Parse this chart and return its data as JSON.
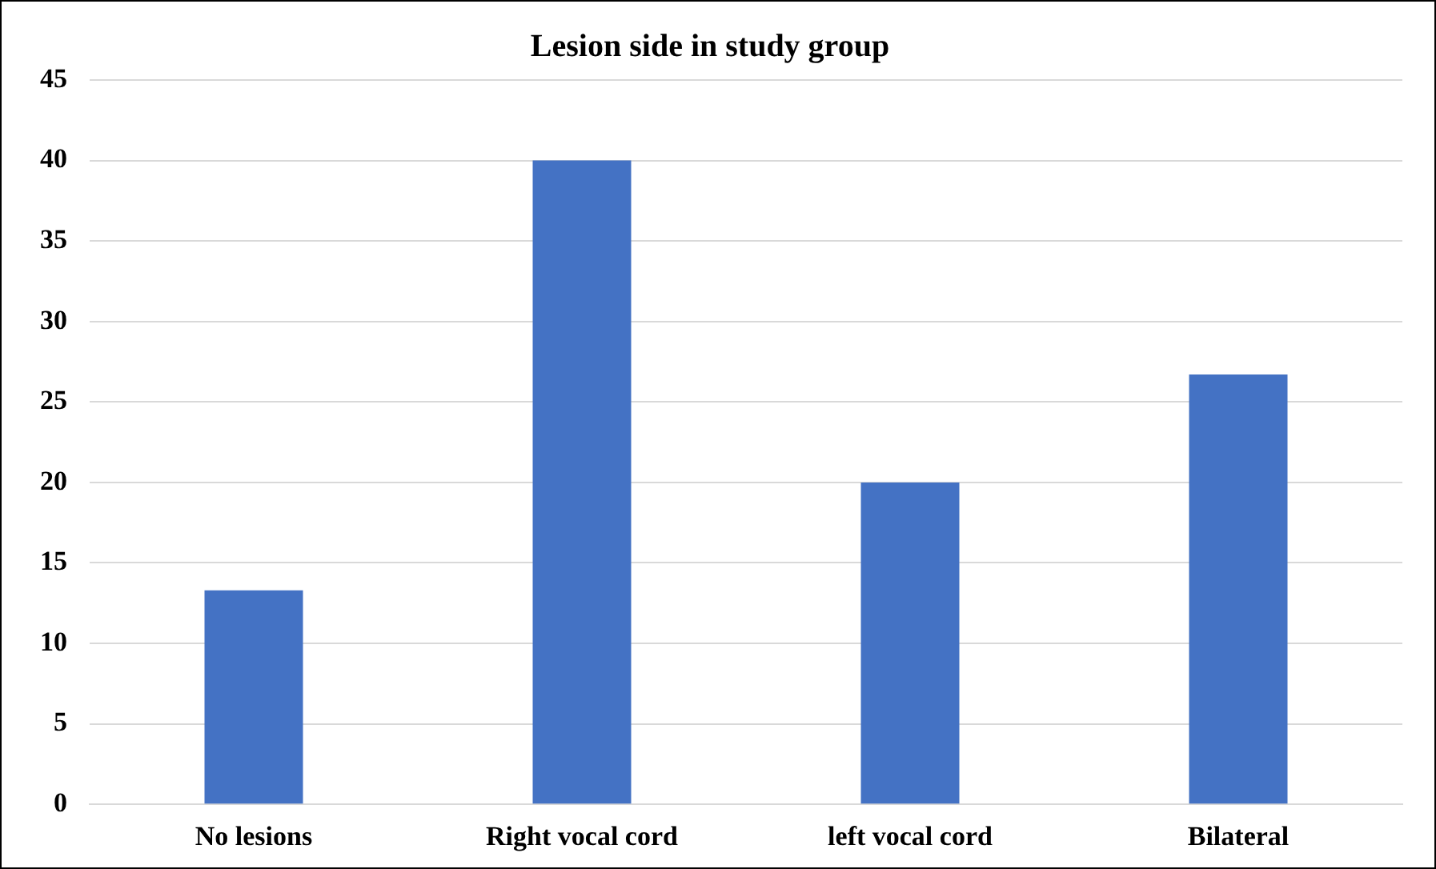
{
  "chart_data": {
    "type": "bar",
    "title": "Lesion side in study group",
    "categories": [
      "No lesions",
      "Right vocal cord",
      "left vocal cord",
      "Bilateral"
    ],
    "values": [
      13.3,
      40,
      20,
      26.7
    ],
    "color": "#4472c4",
    "ylim": [
      0,
      45
    ],
    "yticks": [
      0,
      5,
      10,
      15,
      20,
      25,
      30,
      35,
      40,
      45
    ],
    "grid": "y"
  }
}
